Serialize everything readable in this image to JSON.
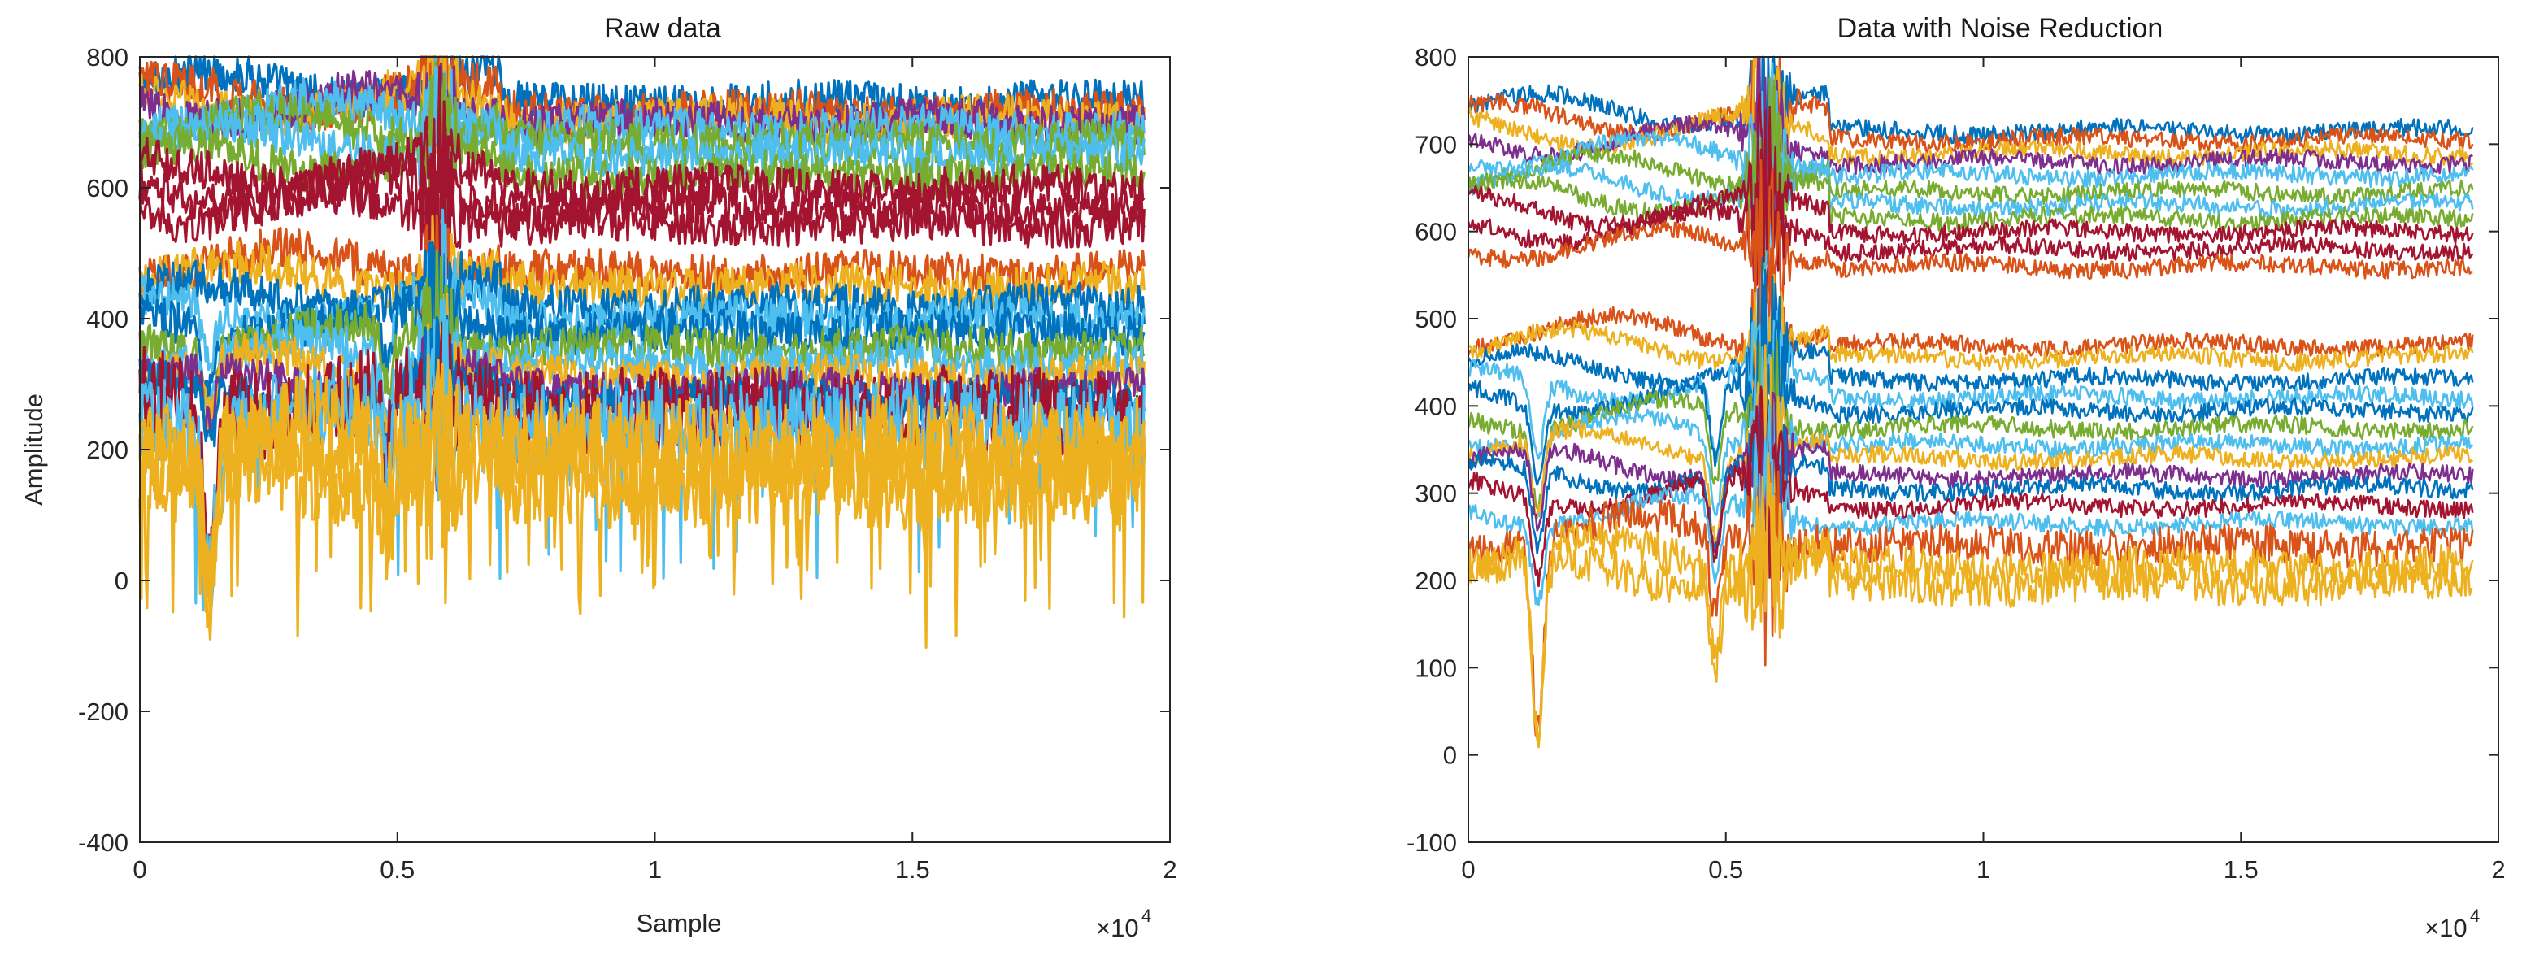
{
  "figure": {
    "panels": [
      {
        "title": "Raw data",
        "xlabel": "Sample",
        "ylabel": "Amplitude",
        "x_exponent_base": "×10",
        "x_exponent_power": "4"
      },
      {
        "title": "Data with Noise Reduction",
        "xlabel": "",
        "ylabel": "",
        "x_exponent_base": "×10",
        "x_exponent_power": "4"
      }
    ]
  },
  "chart_data": [
    {
      "type": "line",
      "title": "Raw data",
      "xlabel": "Sample",
      "ylabel": "Amplitude",
      "xlim": [
        0,
        20000
      ],
      "ylim": [
        -400,
        800
      ],
      "x_ticks": [
        0,
        5000,
        10000,
        15000,
        20000
      ],
      "x_tick_labels": [
        "0",
        "0.5",
        "1",
        "1.5",
        "2"
      ],
      "x_multiplier": "×10^4",
      "y_ticks": [
        -400,
        -200,
        0,
        200,
        400,
        600,
        800
      ],
      "y_tick_labels": [
        "-400",
        "-200",
        "0",
        "200",
        "400",
        "600",
        "800"
      ],
      "grid": false,
      "legend": "none",
      "sample_count": 19500,
      "noise_level": "high",
      "series_count": 26,
      "series": [
        {
          "color": "#0072BD",
          "baseline": 730
        },
        {
          "color": "#D95319",
          "baseline": 715
        },
        {
          "color": "#EDB120",
          "baseline": 705
        },
        {
          "color": "#7E2F8E",
          "baseline": 700
        },
        {
          "color": "#4DBEEE",
          "baseline": 690
        },
        {
          "color": "#77AC30",
          "baseline": 670
        },
        {
          "color": "#4DBEEE",
          "baseline": 650
        },
        {
          "color": "#77AC30",
          "baseline": 620
        },
        {
          "color": "#A2142F",
          "baseline": 600
        },
        {
          "color": "#A2142F",
          "baseline": 570
        },
        {
          "color": "#A2142F",
          "baseline": 545
        },
        {
          "color": "#D95319",
          "baseline": 470
        },
        {
          "color": "#EDB120",
          "baseline": 450
        },
        {
          "color": "#0072BD",
          "baseline": 420
        },
        {
          "color": "#4DBEEE",
          "baseline": 400
        },
        {
          "color": "#0072BD",
          "baseline": 380
        },
        {
          "color": "#77AC30",
          "baseline": 355
        },
        {
          "color": "#4DBEEE",
          "baseline": 330
        },
        {
          "color": "#EDB120",
          "baseline": 310
        },
        {
          "color": "#7E2F8E",
          "baseline": 290
        },
        {
          "color": "#0072BD",
          "baseline": 275
        },
        {
          "color": "#A2142F",
          "baseline": 255
        },
        {
          "color": "#4DBEEE",
          "baseline": 235
        },
        {
          "color": "#EDB120",
          "baseline": 210
        },
        {
          "color": "#EDB120",
          "baseline": 180
        },
        {
          "color": "#EDB120",
          "baseline": 150
        }
      ]
    },
    {
      "type": "line",
      "title": "Data with Noise Reduction",
      "xlabel": "",
      "ylabel": "",
      "xlim": [
        0,
        20000
      ],
      "ylim": [
        -100,
        800
      ],
      "x_ticks": [
        0,
        5000,
        10000,
        15000,
        20000
      ],
      "x_tick_labels": [
        "0",
        "0.5",
        "1",
        "1.5",
        "2"
      ],
      "x_multiplier": "×10^4",
      "y_ticks": [
        -100,
        0,
        100,
        200,
        300,
        400,
        500,
        600,
        700,
        800
      ],
      "y_tick_labels": [
        "-100",
        "0",
        "100",
        "200",
        "300",
        "400",
        "500",
        "600",
        "700",
        "800"
      ],
      "grid": false,
      "legend": "none",
      "sample_count": 19500,
      "noise_level": "low",
      "series_count": 26,
      "series": [
        {
          "color": "#0072BD",
          "baseline": 715
        },
        {
          "color": "#D95319",
          "baseline": 705
        },
        {
          "color": "#EDB120",
          "baseline": 690
        },
        {
          "color": "#7E2F8E",
          "baseline": 680
        },
        {
          "color": "#4DBEEE",
          "baseline": 665
        },
        {
          "color": "#77AC30",
          "baseline": 645
        },
        {
          "color": "#4DBEEE",
          "baseline": 630
        },
        {
          "color": "#77AC30",
          "baseline": 615
        },
        {
          "color": "#A2142F",
          "baseline": 600
        },
        {
          "color": "#A2142F",
          "baseline": 580
        },
        {
          "color": "#D95319",
          "baseline": 560
        },
        {
          "color": "#D95319",
          "baseline": 470
        },
        {
          "color": "#EDB120",
          "baseline": 455
        },
        {
          "color": "#0072BD",
          "baseline": 430
        },
        {
          "color": "#4DBEEE",
          "baseline": 410
        },
        {
          "color": "#0072BD",
          "baseline": 395
        },
        {
          "color": "#77AC30",
          "baseline": 375
        },
        {
          "color": "#4DBEEE",
          "baseline": 355
        },
        {
          "color": "#EDB120",
          "baseline": 340
        },
        {
          "color": "#7E2F8E",
          "baseline": 320
        },
        {
          "color": "#0072BD",
          "baseline": 305
        },
        {
          "color": "#A2142F",
          "baseline": 285
        },
        {
          "color": "#4DBEEE",
          "baseline": 265
        },
        {
          "color": "#D95319",
          "baseline": 240
        },
        {
          "color": "#EDB120",
          "baseline": 215
        },
        {
          "color": "#EDB120",
          "baseline": 195
        }
      ]
    }
  ]
}
